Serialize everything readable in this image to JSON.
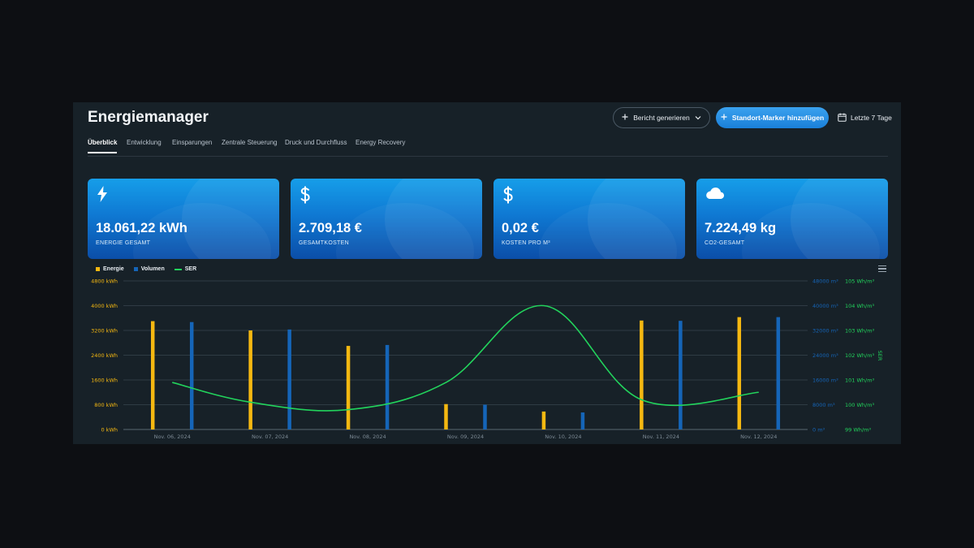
{
  "app": {
    "title": "Energiemanager",
    "report_button": "Bericht generieren",
    "marker_button": "Standort-Marker hinzufügen",
    "date_range": "Letzte 7 Tage"
  },
  "tabs": [
    {
      "label": "Überblick",
      "active": true
    },
    {
      "label": "Entwicklung",
      "active": false
    },
    {
      "label": "Einsparungen",
      "active": false
    },
    {
      "label": "Zentrale Steuerung",
      "active": false
    },
    {
      "label": "Druck und Durchfluss",
      "active": false
    },
    {
      "label": "Energy Recovery",
      "active": false
    }
  ],
  "cards": [
    {
      "icon": "lightning-icon",
      "value": "18.061,22 kWh",
      "label": "ENERGIE GESAMT"
    },
    {
      "icon": "dollar-icon",
      "value": "2.709,18 €",
      "label": "GESAMTKOSTEN"
    },
    {
      "icon": "dollar-icon",
      "value": "0,02 €",
      "label": "KOSTEN PRO M³"
    },
    {
      "icon": "cloud-icon",
      "value": "7.224,49 kg",
      "label": "CO2-GESAMT"
    }
  ],
  "colors": {
    "energie": "#f5b811",
    "volumen": "#1565b8",
    "ser": "#22d35c",
    "accent": "#1a8fe6"
  },
  "chart_data": {
    "type": "bar",
    "categories": [
      "Nov. 06, 2024",
      "Nov. 07, 2024",
      "Nov. 08, 2024",
      "Nov. 09, 2024",
      "Nov. 10, 2024",
      "Nov. 11, 2024",
      "Nov. 12, 2024"
    ],
    "series": [
      {
        "name": "Energie",
        "type": "bar",
        "axis": "left",
        "values": [
          3500,
          3200,
          2700,
          820,
          580,
          3520,
          3630
        ]
      },
      {
        "name": "Volumen",
        "type": "bar",
        "axis": "right",
        "values": [
          34700,
          32300,
          27300,
          8000,
          5500,
          35100,
          36300
        ]
      },
      {
        "name": "SER",
        "type": "line",
        "axis": "ser",
        "values": [
          100.9,
          100.1,
          99.8,
          100.9,
          104.0,
          100.2,
          100.5
        ]
      }
    ],
    "y_left": {
      "ticks": [
        "0 kWh",
        "800 kWh",
        "1600 kWh",
        "2400 kWh",
        "3200 kWh",
        "4000 kWh",
        "4800 kWh"
      ],
      "range": [
        0,
        4800
      ]
    },
    "y_right": {
      "ticks": [
        "0 m³",
        "8000 m³",
        "16000 m³",
        "24000 m³",
        "32000 m³",
        "40000 m³",
        "48000 m³"
      ],
      "range": [
        0,
        48000
      ]
    },
    "y_ser": {
      "ticks": [
        "99 Wh/m³",
        "100 Wh/m³",
        "101 Wh/m³",
        "102 Wh/m³",
        "103 Wh/m³",
        "104 Wh/m³",
        "105 Wh/m³"
      ],
      "range": [
        99,
        105
      ],
      "label": "SER"
    },
    "grid": true,
    "legend_position": "top-left"
  }
}
